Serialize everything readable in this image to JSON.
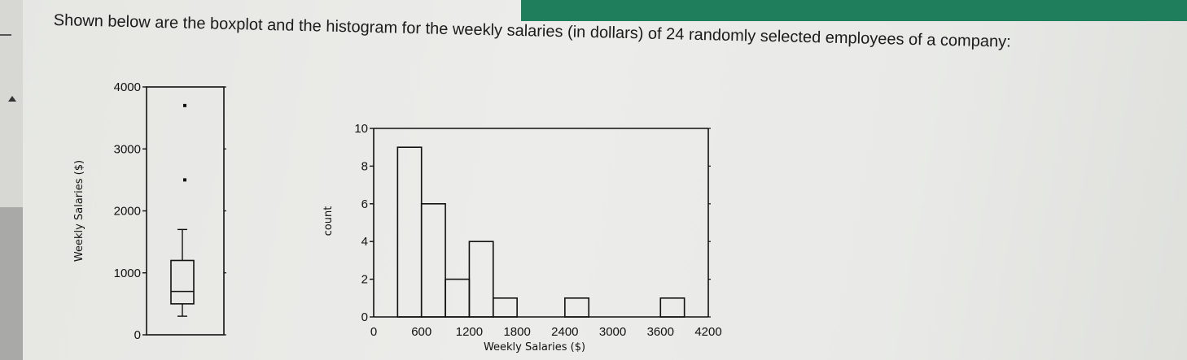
{
  "question_text": "Shown below are the boxplot and the histogram for the weekly salaries (in dollars) of 24 randomly selected employees of a company:",
  "chart_data": [
    {
      "type": "boxplot",
      "ylabel": "Weekly Salaries ($)",
      "ylim": [
        0,
        4000
      ],
      "yticks": [
        0,
        1000,
        2000,
        3000,
        4000
      ],
      "min": 300,
      "q1": 500,
      "median": 700,
      "q3": 1200,
      "whisker_high": 1700,
      "outliers": [
        2500,
        3700
      ],
      "grid": false
    },
    {
      "type": "bar",
      "xlabel": "Weekly Salaries ($)",
      "ylabel": "count",
      "bin_edges": [
        0,
        300,
        600,
        900,
        1200,
        1500,
        1800,
        2100,
        2400,
        2700,
        3000,
        3300,
        3600,
        3900,
        4200
      ],
      "counts": [
        0,
        9,
        6,
        2,
        4,
        1,
        0,
        0,
        1,
        0,
        0,
        0,
        1,
        0
      ],
      "xticks": [
        0,
        600,
        1200,
        1800,
        2400,
        3000,
        3600,
        4200
      ],
      "yticks": [
        0,
        2,
        4,
        6,
        8,
        10
      ],
      "ylim": [
        0,
        10
      ],
      "xlim": [
        0,
        4200
      ],
      "grid": false
    }
  ]
}
